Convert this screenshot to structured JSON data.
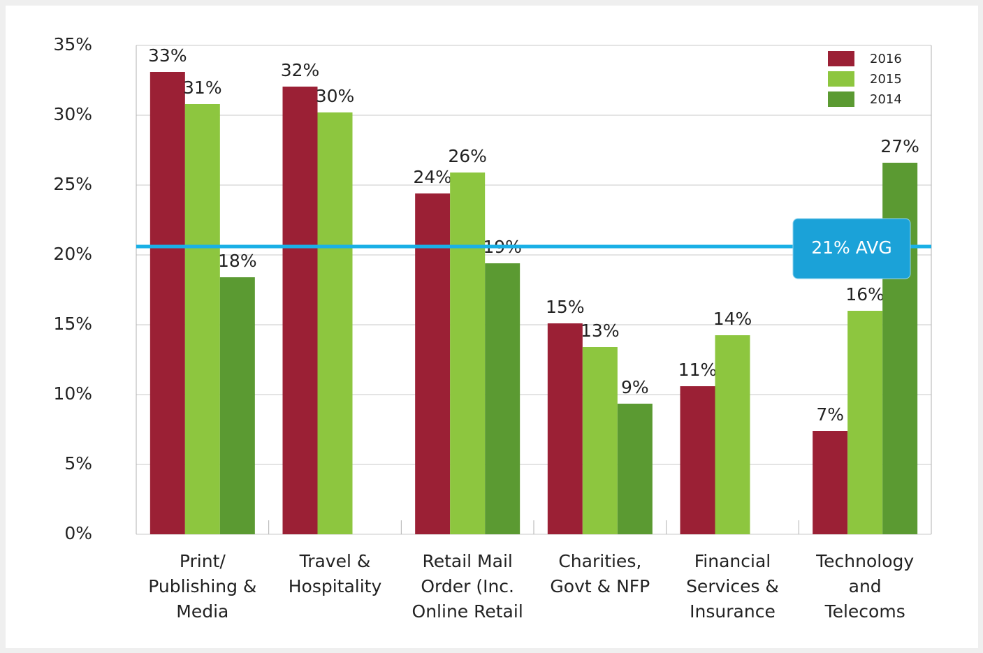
{
  "chart_data": {
    "type": "bar",
    "categories": [
      "Print/\nPublishing &\nMedia",
      "Travel &\nHospitality",
      "Retail Mail\nOrder (Inc.\nOnline Retail",
      "Charities,\nGovt & NFP",
      "Financial\nServices &\nInsurance",
      "Technology\nand\nTelecoms"
    ],
    "series": [
      {
        "name": "2016",
        "color": "#9b2035",
        "values": [
          33.1,
          32.05,
          24.4,
          15.1,
          10.6,
          7.4
        ],
        "value_labels": [
          "33%",
          "32%",
          "24%",
          "15%",
          "11%",
          "7%"
        ]
      },
      {
        "name": "2015",
        "color": "#8dc63f",
        "values": [
          30.8,
          30.2,
          25.9,
          13.4,
          14.25,
          16
        ],
        "value_labels": [
          "31%",
          "30%",
          "26%",
          "13%",
          "14%",
          "16%"
        ]
      },
      {
        "name": "2014",
        "color": "#5b9a32",
        "values": [
          18.4,
          null,
          19.4,
          9.35,
          null,
          26.6
        ],
        "value_labels": [
          "18%",
          null,
          "19%",
          "9%",
          null,
          "27%"
        ]
      }
    ],
    "ylim": [
      0,
      35
    ],
    "yticks": [
      {
        "value": 0,
        "label": "0%"
      },
      {
        "value": 5,
        "label": "5%"
      },
      {
        "value": 10,
        "label": "10%"
      },
      {
        "value": 15,
        "label": "15%"
      },
      {
        "value": 20,
        "label": "20%"
      },
      {
        "value": 25,
        "label": "25%"
      },
      {
        "value": 30,
        "label": "30%"
      },
      {
        "value": 35,
        "label": "35%"
      }
    ],
    "grid": true,
    "legend": "top-right",
    "average": {
      "value": 20.6,
      "label": "21% AVG",
      "color": "#1ab0e6"
    }
  }
}
